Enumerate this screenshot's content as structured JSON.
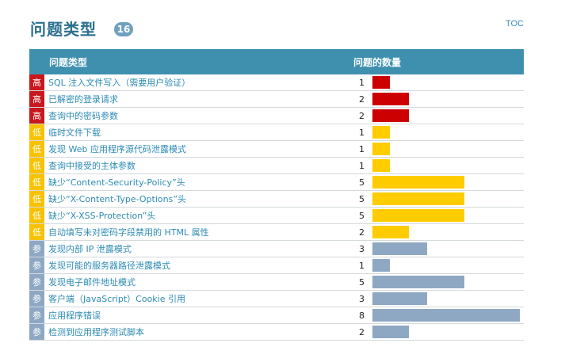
{
  "header": {
    "title": "问题类型",
    "count": "16",
    "toc_label": "TOC"
  },
  "table": {
    "col_type": "问题类型",
    "col_count": "问题的数量",
    "max_count": 8,
    "rows": [
      {
        "severity": "high",
        "severity_label": "高",
        "name": "SQL 注入文件写入（需要用户验证）",
        "count": 1
      },
      {
        "severity": "high",
        "severity_label": "高",
        "name": "已解密的登录请求",
        "count": 2
      },
      {
        "severity": "high",
        "severity_label": "高",
        "name": "查询中的密码参数",
        "count": 2
      },
      {
        "severity": "low",
        "severity_label": "低",
        "name": "临时文件下载",
        "count": 1
      },
      {
        "severity": "low",
        "severity_label": "低",
        "name": "发现 Web 应用程序源代码泄露模式",
        "count": 1
      },
      {
        "severity": "low",
        "severity_label": "低",
        "name": "查询中接受的主体参数",
        "count": 1
      },
      {
        "severity": "low",
        "severity_label": "低",
        "name": "缺少“Content-Security-Policy”头",
        "count": 5
      },
      {
        "severity": "low",
        "severity_label": "低",
        "name": "缺少“X-Content-Type-Options”头",
        "count": 5
      },
      {
        "severity": "low",
        "severity_label": "低",
        "name": "缺少“X-XSS-Protection”头",
        "count": 5
      },
      {
        "severity": "low",
        "severity_label": "低",
        "name": "自动填写未对密码字段禁用的 HTML 属性",
        "count": 2
      },
      {
        "severity": "info",
        "severity_label": "参",
        "name": "发现内部 IP 泄露模式",
        "count": 3
      },
      {
        "severity": "info",
        "severity_label": "参",
        "name": "发现可能的服务器路径泄露模式",
        "count": 1
      },
      {
        "severity": "info",
        "severity_label": "参",
        "name": "发现电子邮件地址模式",
        "count": 5
      },
      {
        "severity": "info",
        "severity_label": "参",
        "name": "客户端（JavaScript）Cookie 引用",
        "count": 3
      },
      {
        "severity": "info",
        "severity_label": "参",
        "name": "应用程序错误",
        "count": 8
      },
      {
        "severity": "info",
        "severity_label": "参",
        "name": "检测到应用程序测试脚本",
        "count": 2
      }
    ]
  },
  "colors": {
    "high": "#cc0000",
    "low": "#ffcc00",
    "info": "#8ea8c4",
    "header_bg": "#3f90ae",
    "link": "#2e8bb5"
  }
}
